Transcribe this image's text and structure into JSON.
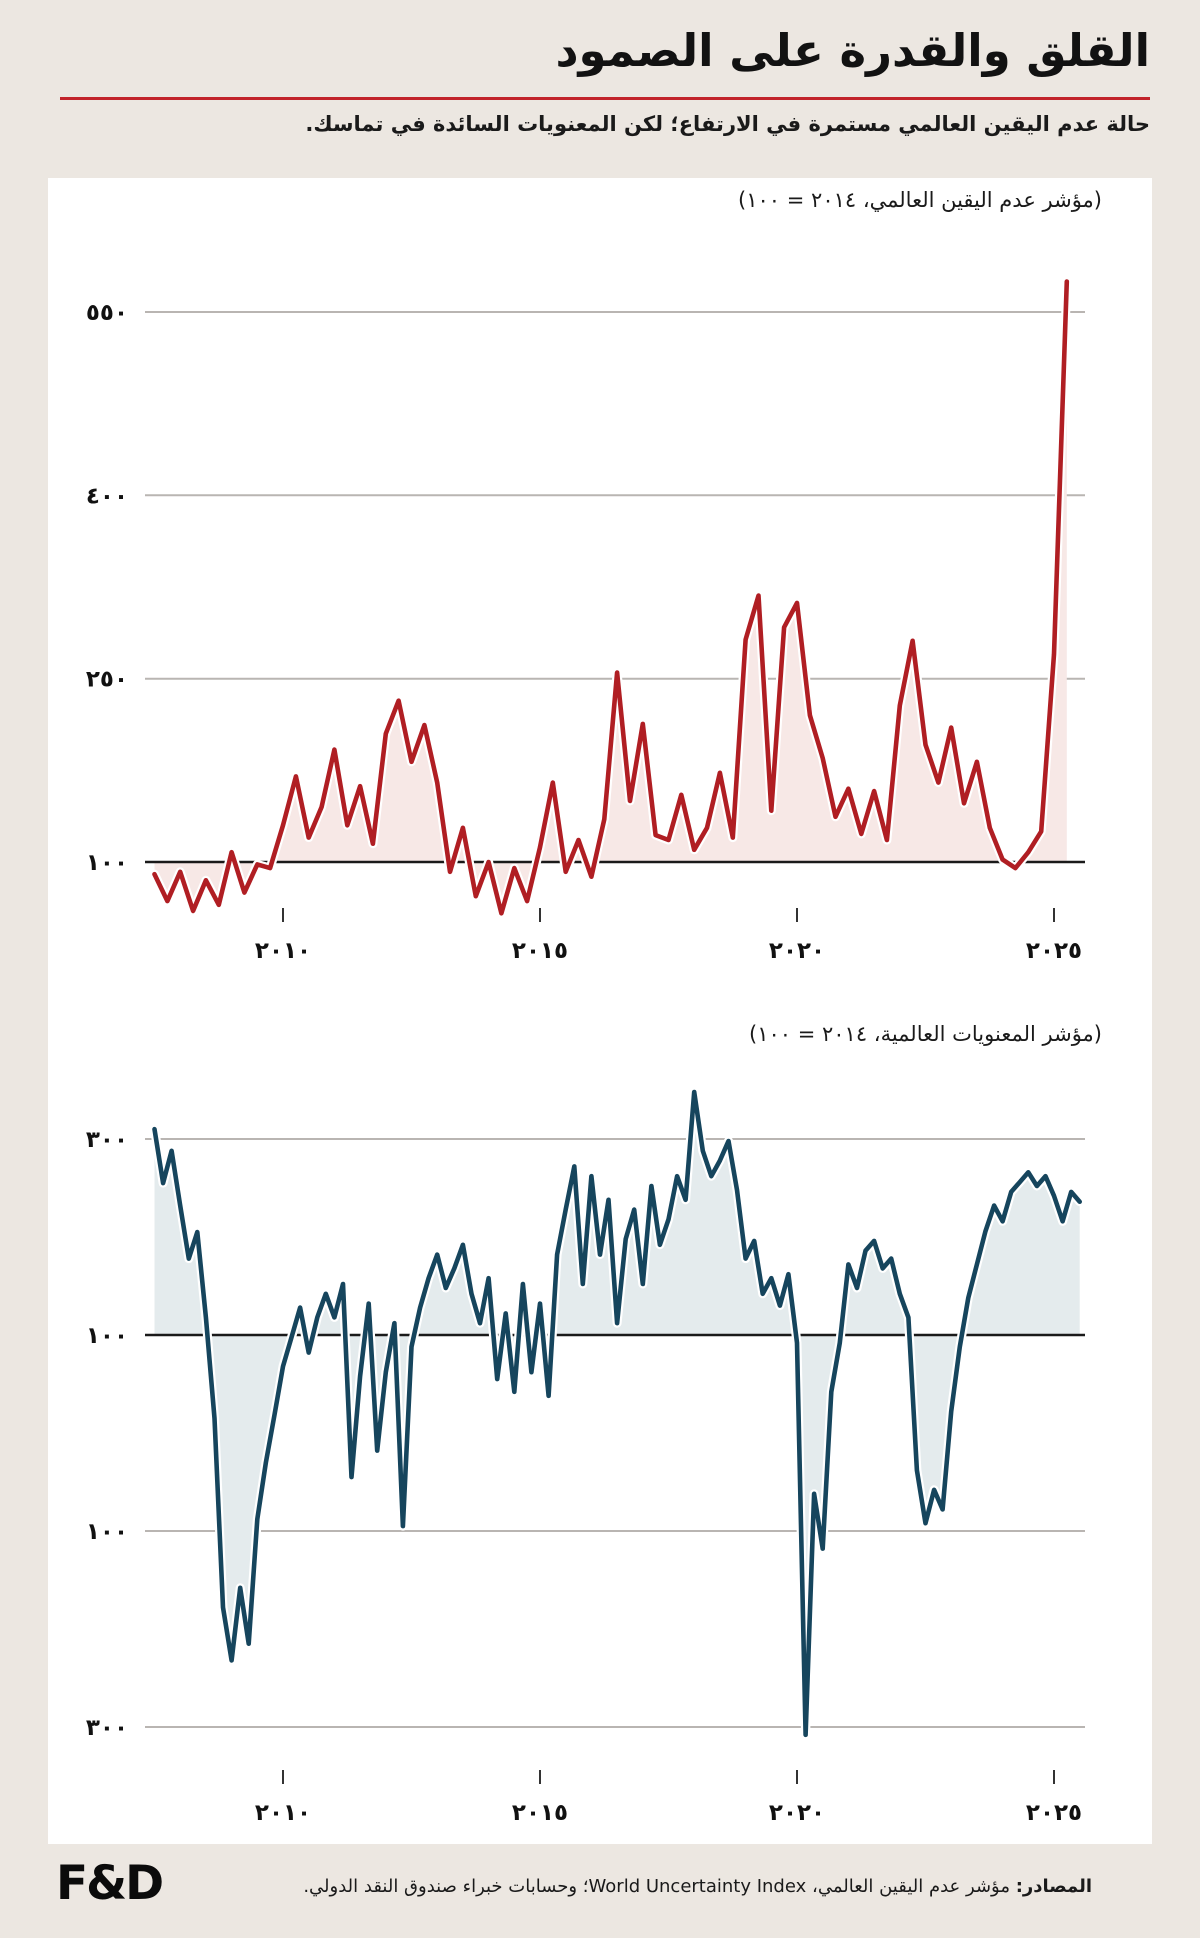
{
  "page": {
    "title": "القلق والقدرة على الصمود",
    "subtitle": "حالة عدم اليقين العالمي مستمرة في الارتفاع؛ لكن المعنويات السائدة في تماسك.",
    "footer": {
      "logo": "F&D",
      "source_label": "المصادر:",
      "source_text": " مؤشر عدم اليقين العالمي، World Uncertainty Index؛ وحسابات خبراء صندوق النقد الدولي."
    }
  },
  "colors": {
    "page_background": "#ece7e1",
    "card_background": "#ffffff",
    "accent_rule_red": "#c2242b",
    "uncertainty_line": "#b01e23",
    "uncertainty_fill": "#f7e8e6",
    "sentiment_line": "#16455d",
    "sentiment_fill": "#e4ebed",
    "gridline": "#b9b5b2",
    "baseline": "#1a1a1a"
  },
  "chart_data": [
    {
      "type": "area",
      "title": "(مؤشر عدم اليقين العالمي، ٢٠١٤ = ١٠٠)",
      "series_name": "World Uncertainty Index",
      "line_color": "#b01e23",
      "fill_color": "#f7e8e6",
      "grid_color": "#b9b5b2",
      "baseline_color": "#1a1a1a",
      "baseline": 100,
      "ylim": [
        40,
        590
      ],
      "x_range": [
        2007.3,
        2025.85
      ],
      "x_start": 2007.5,
      "x_step": 0.25,
      "yticks": [
        {
          "v": 550,
          "label": "٥٥٠"
        },
        {
          "v": 400,
          "label": "٤٠٠"
        },
        {
          "v": 250,
          "label": "٢٥٠"
        },
        {
          "v": 100,
          "label": "١٠٠"
        }
      ],
      "xticks": [
        {
          "v": 2010,
          "label": "٢٠١٠"
        },
        {
          "v": 2015,
          "label": "٢٠١٥"
        },
        {
          "v": 2020,
          "label": "٢٠٢٠"
        },
        {
          "v": 2025,
          "label": "٢٠٢٥"
        }
      ],
      "values": [
        90,
        68,
        92,
        60,
        85,
        65,
        108,
        75,
        98,
        95,
        130,
        170,
        120,
        145,
        192,
        130,
        162,
        115,
        205,
        232,
        182,
        212,
        165,
        92,
        128,
        72,
        100,
        58,
        95,
        68,
        112,
        165,
        92,
        118,
        88,
        135,
        255,
        150,
        213,
        122,
        118,
        155,
        110,
        128,
        173,
        120,
        282,
        318,
        142,
        292,
        312,
        220,
        185,
        137,
        160,
        123,
        158,
        118,
        228,
        281,
        196,
        165,
        210,
        148,
        182,
        128,
        102,
        95,
        108,
        125,
        270,
        575
      ]
    },
    {
      "type": "area",
      "title": "(مؤشر المعنويات العالمية، ٢٠١٤ = ١٠٠)",
      "series_name": "Global Sentiment Index",
      "line_color": "#16455d",
      "fill_color": "#e4ebed",
      "grid_color": "#b9b5b2",
      "baseline_color": "#1a1a1a",
      "baseline": 100,
      "ylim": [
        -340,
        370
      ],
      "x_range": [
        2007.3,
        2025.85
      ],
      "x_start": 2007.5,
      "x_step": 0.16667,
      "yticks": [
        {
          "v": 300,
          "label": "٣٠٠"
        },
        {
          "v": 100,
          "label": "١٠٠"
        },
        {
          "v": -100,
          "label": "١٠٠"
        },
        {
          "v": -300,
          "label": "٣٠٠"
        }
      ],
      "xticks": [
        {
          "v": 2010,
          "label": "٢٠١٠"
        },
        {
          "v": 2015,
          "label": "٢٠١٥"
        },
        {
          "v": 2020,
          "label": "٢٠٢٠"
        },
        {
          "v": 2025,
          "label": "٢٠٢٥"
        }
      ],
      "values": [
        310,
        255,
        288,
        232,
        178,
        205,
        118,
        15,
        -178,
        -232,
        -158,
        -215,
        -88,
        -30,
        18,
        68,
        98,
        128,
        82,
        118,
        142,
        118,
        152,
        -45,
        58,
        132,
        -18,
        62,
        112,
        -95,
        88,
        128,
        158,
        182,
        148,
        168,
        192,
        142,
        112,
        158,
        55,
        122,
        42,
        152,
        62,
        132,
        38,
        182,
        228,
        272,
        152,
        262,
        182,
        238,
        112,
        198,
        228,
        152,
        252,
        192,
        218,
        262,
        238,
        348,
        288,
        262,
        278,
        298,
        248,
        178,
        196,
        142,
        158,
        130,
        162,
        92,
        -308,
        -62,
        -118,
        42,
        92,
        172,
        148,
        186,
        196,
        168,
        178,
        142,
        118,
        -38,
        -92,
        -58,
        -78,
        22,
        88,
        138,
        172,
        206,
        232,
        216,
        246,
        256,
        266,
        252,
        262,
        242,
        216,
        246,
        236
      ]
    }
  ]
}
